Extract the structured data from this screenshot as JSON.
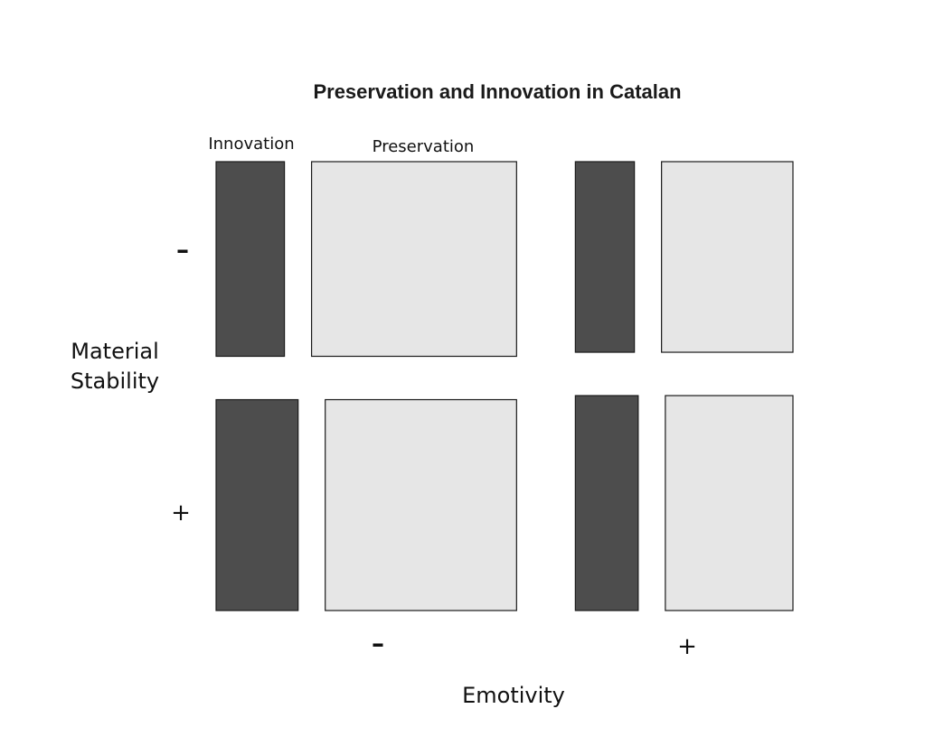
{
  "chart_data": {
    "type": "mosaic",
    "title": "Preservation and Innovation in Catalan",
    "xlabel": "Emotivity",
    "ylabel": [
      "Material",
      "Stability"
    ],
    "x_levels": [
      "–",
      "+"
    ],
    "y_levels": [
      "–",
      "+"
    ],
    "fill_levels": [
      "Innovation",
      "Preservation"
    ],
    "colors": {
      "Innovation": "#4d4d4d",
      "Preservation": "#e6e6e6"
    },
    "x_proportions": [
      0.58,
      0.42
    ],
    "cells": [
      {
        "emotivity": "–",
        "material_stability": "–",
        "height": 0.48,
        "Innovation": 0.25,
        "Preservation": 0.75
      },
      {
        "emotivity": "–",
        "material_stability": "+",
        "height": 0.52,
        "Innovation": 0.3,
        "Preservation": 0.7
      },
      {
        "emotivity": "+",
        "material_stability": "–",
        "height": 0.47,
        "Innovation": 0.31,
        "Preservation": 0.69
      },
      {
        "emotivity": "+",
        "material_stability": "+",
        "height": 0.53,
        "Innovation": 0.33,
        "Preservation": 0.67
      }
    ]
  }
}
